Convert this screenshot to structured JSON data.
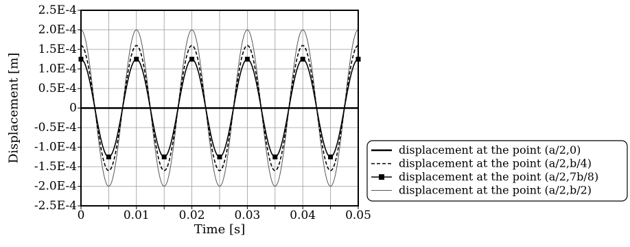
{
  "chart_data": {
    "type": "line",
    "xlabel": "Time [s]",
    "ylabel": "Displacement [m]",
    "xlim": [
      0,
      0.05
    ],
    "ylim": [
      -0.00025,
      0.00025
    ],
    "x_ticks": [
      0,
      0.005,
      0.01,
      0.015,
      0.02,
      0.025,
      0.03,
      0.035,
      0.04,
      0.045,
      0.05
    ],
    "x_tick_labels": [
      "0",
      "",
      "0.01",
      "",
      "0.02",
      "",
      "0.03",
      "",
      "0.04",
      "",
      "0.05"
    ],
    "y_ticks": [
      0.00025,
      0.0002,
      0.00015,
      0.0001,
      5e-05,
      0,
      -5e-05,
      -0.0001,
      -0.00015,
      -0.0002,
      -0.00025
    ],
    "y_tick_labels": [
      "2.5E-4",
      "2.0E-4",
      "1.5E-4",
      "1.0E-4",
      "0.5E-4",
      "0",
      "-0.5E-4",
      "-1.0E-4",
      "-1.5E-4",
      "-2.0E-4",
      "-2.5E-4"
    ],
    "grid": true,
    "legend_position": "right",
    "period": 0.01,
    "series": [
      {
        "name": "displacement at the point (a/2,0)",
        "style": "solid-thick",
        "color": "#000000",
        "amplitude": 0,
        "x": [
          0,
          0.05
        ],
        "y": [
          0,
          0
        ]
      },
      {
        "name": "displacement at the point (a/2,b/4)",
        "style": "dashed",
        "color": "#000000",
        "amplitude": 0.00016,
        "x": [
          0,
          0.005,
          0.01,
          0.015,
          0.02,
          0.025,
          0.03,
          0.035,
          0.04,
          0.045,
          0.05
        ],
        "y": [
          0.00016,
          -0.00016,
          0.00016,
          -0.00016,
          0.00016,
          -0.00016,
          0.00016,
          -0.00016,
          0.00016,
          -0.00016,
          0.00016
        ]
      },
      {
        "name": "displacement at the point (a/2,7b/8)",
        "style": "solid-square-markers",
        "color": "#000000",
        "amplitude": 0.000125,
        "x": [
          0,
          0.005,
          0.01,
          0.015,
          0.02,
          0.025,
          0.03,
          0.035,
          0.04,
          0.045,
          0.05
        ],
        "y": [
          0.000125,
          -0.000125,
          0.000125,
          -0.000125,
          0.000125,
          -0.000125,
          0.000125,
          -0.000125,
          0.000125,
          -0.000125,
          0.000125
        ]
      },
      {
        "name": "displacement at the point (a/2,b/2)",
        "style": "solid-thin",
        "color": "#555555",
        "amplitude": 0.0002,
        "x": [
          0,
          0.005,
          0.01,
          0.015,
          0.02,
          0.025,
          0.03,
          0.035,
          0.04,
          0.045,
          0.05
        ],
        "y": [
          0.0002,
          -0.0002,
          0.0002,
          -0.0002,
          0.0002,
          -0.0002,
          0.0002,
          -0.0002,
          0.0002,
          -0.0002,
          0.0002
        ]
      }
    ]
  }
}
